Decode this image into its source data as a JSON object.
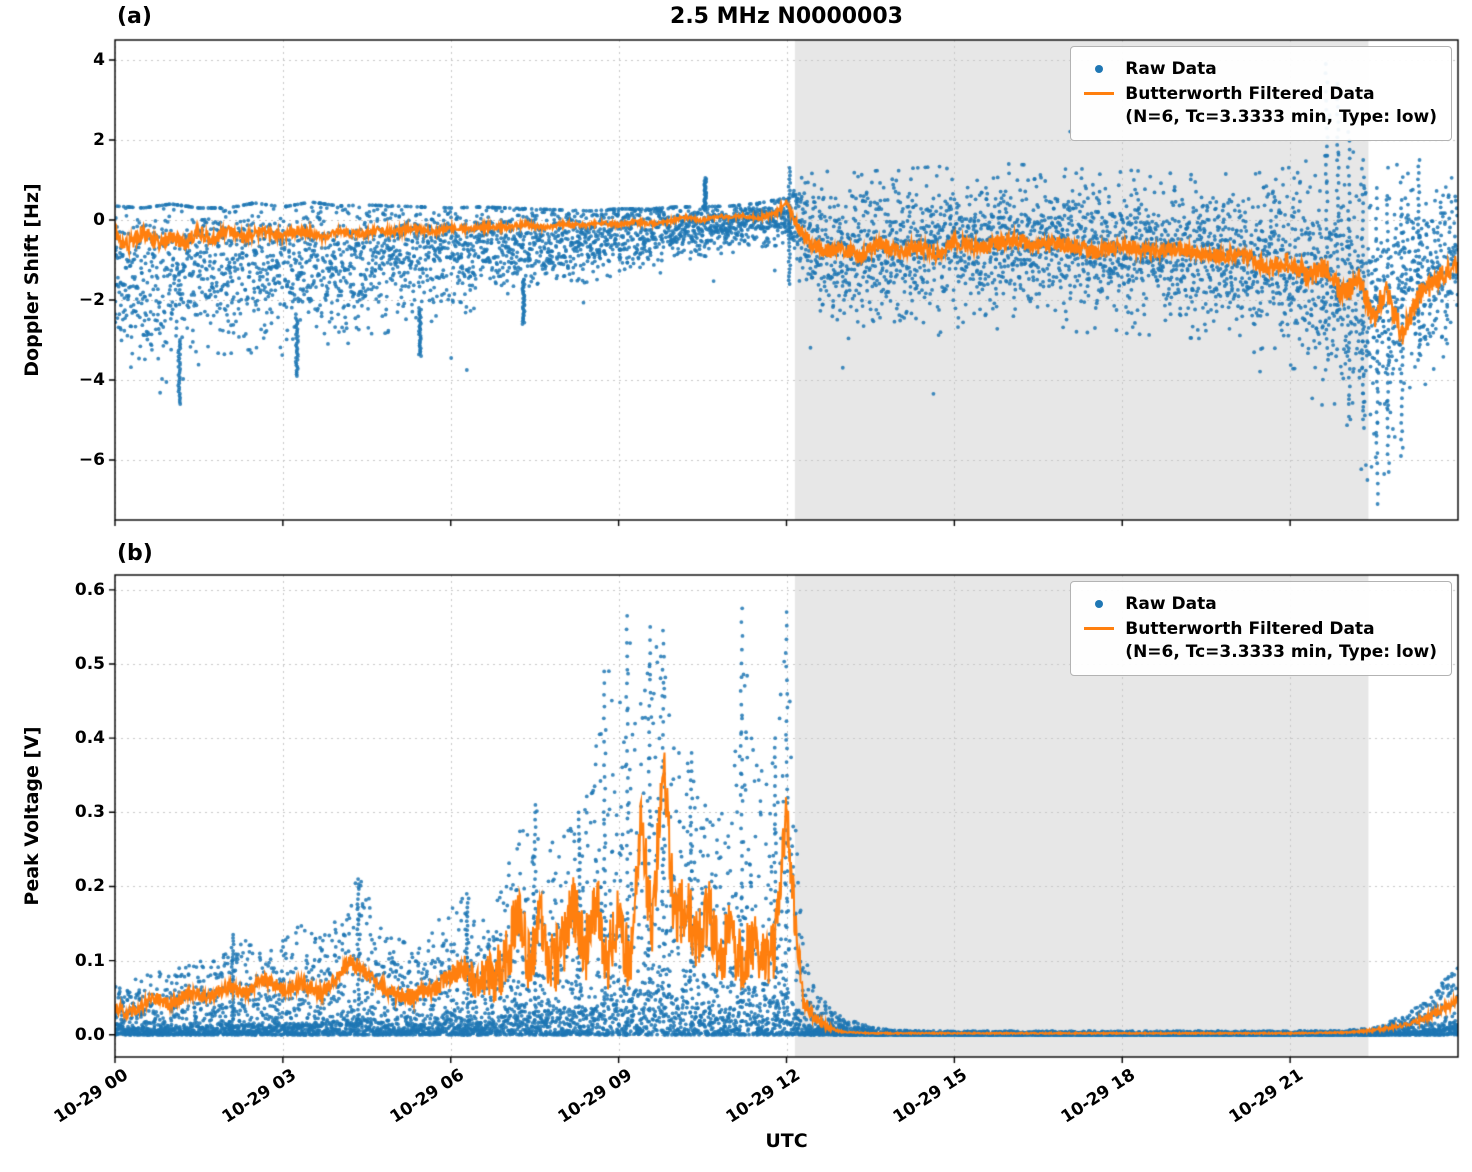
{
  "chart_data": {
    "type": "scatter",
    "title": "2.5 MHz N0000003",
    "xlabel": "UTC",
    "colors": {
      "raw": "#1f77b4",
      "filtered": "#ff7f0e",
      "shade": "#e7e7e7",
      "grid": "#c8c8c8",
      "axis": "#000000"
    },
    "legend": {
      "items": [
        {
          "label": "Raw Data"
        },
        {
          "label": "Butterworth Filtered Data",
          "label2": "(N=6, Tc=3.3333 min, Type: low)"
        }
      ]
    },
    "x": {
      "lim": [
        0,
        24
      ],
      "ticks": [
        0,
        3,
        6,
        9,
        12,
        15,
        18,
        21
      ],
      "tick_labels": [
        "10-29 00",
        "10-29 03",
        "10-29 06",
        "10-29 09",
        "10-29 12",
        "10-29 15",
        "10-29 18",
        "10-29 21"
      ]
    },
    "shade_hours": [
      12.15,
      22.4
    ],
    "panels": [
      {
        "panel_label": "(a)",
        "ylabel": "Doppler Shift [Hz]",
        "ylim": [
          -7.5,
          4.5
        ],
        "yticks": [
          4,
          2,
          0,
          -2,
          -4,
          -6
        ],
        "ytick_labels": [
          "4",
          "2",
          "0",
          "−2",
          "−4",
          "−6"
        ],
        "scatter_envelope": {
          "t": [
            0,
            0.5,
            1,
            1.5,
            2,
            2.5,
            3,
            3.5,
            4,
            4.5,
            5,
            5.5,
            6,
            6.5,
            7,
            7.5,
            8,
            8.5,
            9,
            9.5,
            10,
            10.5,
            11,
            11.5,
            12,
            12.3,
            12.6,
            13,
            13.5,
            14,
            14.5,
            15,
            15.5,
            16,
            16.5,
            17,
            17.5,
            18,
            18.5,
            19,
            19.5,
            20,
            20.5,
            21,
            21.5,
            22,
            22.5,
            23,
            23.5,
            24
          ],
          "center": [
            -1.3,
            -1.5,
            -1.4,
            -1.2,
            -1.2,
            -1.0,
            -1.1,
            -0.9,
            -1.0,
            -0.9,
            -0.85,
            -0.8,
            -0.75,
            -0.65,
            -0.6,
            -0.55,
            -0.5,
            -0.45,
            -0.35,
            -0.3,
            -0.2,
            -0.15,
            -0.1,
            0.0,
            0.1,
            -0.3,
            -0.6,
            -0.8,
            -0.85,
            -0.8,
            -0.75,
            -0.6,
            -0.65,
            -0.55,
            -0.6,
            -0.65,
            -0.7,
            -0.7,
            -0.75,
            -0.8,
            -0.85,
            -0.9,
            -1.0,
            -1.1,
            -1.4,
            -1.8,
            -2.3,
            -1.8,
            -1.3,
            -1.0
          ],
          "spread": [
            1.1,
            1.2,
            1.2,
            1.0,
            1.0,
            0.95,
            0.95,
            0.9,
            0.9,
            0.85,
            0.8,
            0.75,
            0.7,
            0.65,
            0.6,
            0.55,
            0.5,
            0.45,
            0.42,
            0.38,
            0.35,
            0.32,
            0.3,
            0.28,
            0.3,
            0.6,
            0.8,
            0.85,
            0.9,
            0.9,
            0.9,
            0.85,
            0.85,
            0.85,
            0.85,
            0.85,
            0.85,
            0.85,
            0.85,
            0.85,
            0.85,
            0.9,
            0.95,
            1.05,
            1.3,
            1.5,
            1.8,
            1.5,
            1.0,
            0.9
          ]
        },
        "streaks": [
          [
            1.15,
            -4.6,
            -3.0
          ],
          [
            3.25,
            -3.9,
            -2.5
          ],
          [
            5.45,
            -3.4,
            -2.2
          ],
          [
            7.3,
            -2.6,
            -1.5
          ],
          [
            10.55,
            0.3,
            1.05
          ],
          [
            12.05,
            -1.6,
            1.3
          ],
          [
            21.65,
            -3.2,
            3.9
          ],
          [
            21.85,
            -2.5,
            3.4
          ],
          [
            22.05,
            -4.6,
            2.2
          ],
          [
            22.3,
            -5.2,
            1.5
          ],
          [
            22.55,
            -7.1,
            0.8
          ],
          [
            22.75,
            -6.3,
            0.6
          ],
          [
            23.0,
            -5.9,
            0.5
          ],
          [
            23.3,
            -3.5,
            1.5
          ]
        ],
        "filtered": {
          "t": [
            0,
            0.2,
            0.5,
            0.8,
            1,
            1.2,
            1.5,
            1.8,
            2,
            2.3,
            2.6,
            3,
            3.3,
            3.7,
            4,
            4.3,
            4.7,
            5,
            5.3,
            5.7,
            6,
            6.3,
            6.7,
            7,
            7.3,
            7.7,
            8,
            8.3,
            8.7,
            9,
            9.3,
            9.7,
            10,
            10.2,
            10.5,
            10.8,
            11,
            11.2,
            11.5,
            11.8,
            12,
            12.1,
            12.3,
            12.5,
            12.8,
            13,
            13.3,
            13.7,
            14,
            14.3,
            14.7,
            15,
            15.5,
            16,
            16.5,
            17,
            17.5,
            18,
            18.5,
            19,
            19.5,
            20,
            20.3,
            20.7,
            21,
            21.3,
            21.6,
            22,
            22.2,
            22.5,
            22.7,
            23,
            23.3,
            23.6,
            24
          ],
          "v": [
            -0.3,
            -0.7,
            -0.3,
            -0.65,
            -0.35,
            -0.6,
            -0.3,
            -0.5,
            -0.25,
            -0.45,
            -0.3,
            -0.4,
            -0.25,
            -0.45,
            -0.3,
            -0.35,
            -0.25,
            -0.3,
            -0.2,
            -0.3,
            -0.2,
            -0.25,
            -0.15,
            -0.2,
            -0.1,
            -0.2,
            -0.1,
            -0.15,
            -0.08,
            -0.12,
            -0.05,
            -0.1,
            0.0,
            0.08,
            -0.02,
            0.1,
            0.05,
            0.12,
            0.05,
            0.15,
            0.45,
            0.1,
            -0.4,
            -0.65,
            -0.8,
            -0.7,
            -0.9,
            -0.6,
            -0.8,
            -0.65,
            -0.85,
            -0.55,
            -0.7,
            -0.45,
            -0.65,
            -0.6,
            -0.8,
            -0.65,
            -0.8,
            -0.7,
            -0.9,
            -0.85,
            -1.0,
            -1.2,
            -1.05,
            -1.4,
            -1.2,
            -1.9,
            -1.4,
            -2.5,
            -1.7,
            -2.9,
            -1.9,
            -1.5,
            -1.1
          ]
        },
        "line_noise": {
          "t": [
            0,
            2,
            4,
            8,
            11,
            12,
            12.4,
            20,
            21,
            22,
            23,
            24
          ],
          "a": [
            0.22,
            0.16,
            0.1,
            0.06,
            0.05,
            0.07,
            0.2,
            0.2,
            0.28,
            0.33,
            0.3,
            0.25
          ]
        }
      },
      {
        "panel_label": "(b)",
        "ylabel": "Peak Voltage [V]",
        "ylim": [
          -0.03,
          0.62
        ],
        "yticks": [
          0.6,
          0.5,
          0.4,
          0.3,
          0.2,
          0.1,
          0.0
        ],
        "ytick_labels": [
          "0.6",
          "0.5",
          "0.4",
          "0.3",
          "0.2",
          "0.1",
          "0.0"
        ],
        "scatter_envelope": {
          "t": [
            0,
            0.5,
            1,
            1.5,
            2,
            2.3,
            2.6,
            3,
            3.3,
            3.7,
            4,
            4.2,
            4.4,
            4.7,
            5,
            5.5,
            6,
            6.2,
            6.5,
            6.8,
            7,
            7.2,
            7.5,
            7.8,
            8,
            8.2,
            8.5,
            8.8,
            9,
            9.2,
            9.5,
            9.8,
            10,
            10.3,
            10.6,
            11,
            11.2,
            11.5,
            11.8,
            12,
            12.15,
            12.3,
            12.6,
            13,
            13.5,
            14,
            15,
            16,
            17,
            18,
            19,
            20,
            21,
            22,
            22.5,
            23,
            23.5,
            24
          ],
          "hi": [
            0.07,
            0.08,
            0.09,
            0.1,
            0.12,
            0.13,
            0.11,
            0.13,
            0.15,
            0.13,
            0.16,
            0.2,
            0.21,
            0.16,
            0.13,
            0.12,
            0.18,
            0.19,
            0.15,
            0.18,
            0.22,
            0.28,
            0.31,
            0.26,
            0.28,
            0.3,
            0.35,
            0.49,
            0.52,
            0.56,
            0.5,
            0.55,
            0.42,
            0.36,
            0.3,
            0.3,
            0.575,
            0.36,
            0.4,
            0.57,
            0.3,
            0.12,
            0.05,
            0.025,
            0.01,
            0.006,
            0.005,
            0.005,
            0.005,
            0.005,
            0.005,
            0.005,
            0.005,
            0.006,
            0.01,
            0.025,
            0.05,
            0.1
          ]
        },
        "streaks": [
          [
            2.1,
            0,
            0.135
          ],
          [
            4.35,
            0,
            0.21
          ],
          [
            6.3,
            0,
            0.19
          ],
          [
            7.5,
            0,
            0.31
          ],
          [
            8.3,
            0,
            0.3
          ],
          [
            8.75,
            0,
            0.49
          ],
          [
            9.15,
            0,
            0.565
          ],
          [
            9.55,
            0,
            0.55
          ],
          [
            9.8,
            0,
            0.545
          ],
          [
            10.3,
            0,
            0.38
          ],
          [
            11.2,
            0,
            0.575
          ],
          [
            11.8,
            0,
            0.4
          ],
          [
            12.0,
            0,
            0.57
          ]
        ],
        "filtered": {
          "t": [
            0,
            0.3,
            0.7,
            1,
            1.3,
            1.7,
            2,
            2.3,
            2.7,
            3,
            3.3,
            3.7,
            4,
            4.2,
            4.4,
            4.7,
            5,
            5.3,
            5.7,
            6,
            6.2,
            6.5,
            6.8,
            7,
            7.2,
            7.4,
            7.6,
            7.8,
            8,
            8.2,
            8.4,
            8.6,
            8.8,
            9,
            9.2,
            9.4,
            9.6,
            9.8,
            10,
            10.2,
            10.4,
            10.6,
            10.8,
            11,
            11.2,
            11.4,
            11.6,
            11.8,
            12,
            12.1,
            12.3,
            12.5,
            12.8,
            13,
            13.5,
            14,
            15,
            16,
            17,
            18,
            19,
            20,
            21,
            22,
            22.5,
            23,
            23.5,
            24
          ],
          "v": [
            0.035,
            0.03,
            0.05,
            0.04,
            0.055,
            0.05,
            0.065,
            0.055,
            0.075,
            0.06,
            0.07,
            0.055,
            0.08,
            0.1,
            0.09,
            0.07,
            0.055,
            0.05,
            0.06,
            0.08,
            0.09,
            0.07,
            0.08,
            0.1,
            0.17,
            0.1,
            0.15,
            0.09,
            0.12,
            0.17,
            0.11,
            0.18,
            0.1,
            0.16,
            0.09,
            0.3,
            0.13,
            0.38,
            0.15,
            0.18,
            0.12,
            0.17,
            0.1,
            0.14,
            0.09,
            0.13,
            0.1,
            0.12,
            0.31,
            0.2,
            0.05,
            0.02,
            0.008,
            0.004,
            0.002,
            0.002,
            0.002,
            0.002,
            0.002,
            0.002,
            0.002,
            0.002,
            0.002,
            0.003,
            0.006,
            0.012,
            0.025,
            0.045
          ]
        },
        "line_noise": {
          "t": [
            0,
            6,
            7,
            12,
            12.4,
            13,
            22,
            23,
            24
          ],
          "a": [
            0.008,
            0.012,
            0.045,
            0.045,
            0.008,
            0.0008,
            0.0008,
            0.003,
            0.007
          ]
        }
      }
    ]
  }
}
